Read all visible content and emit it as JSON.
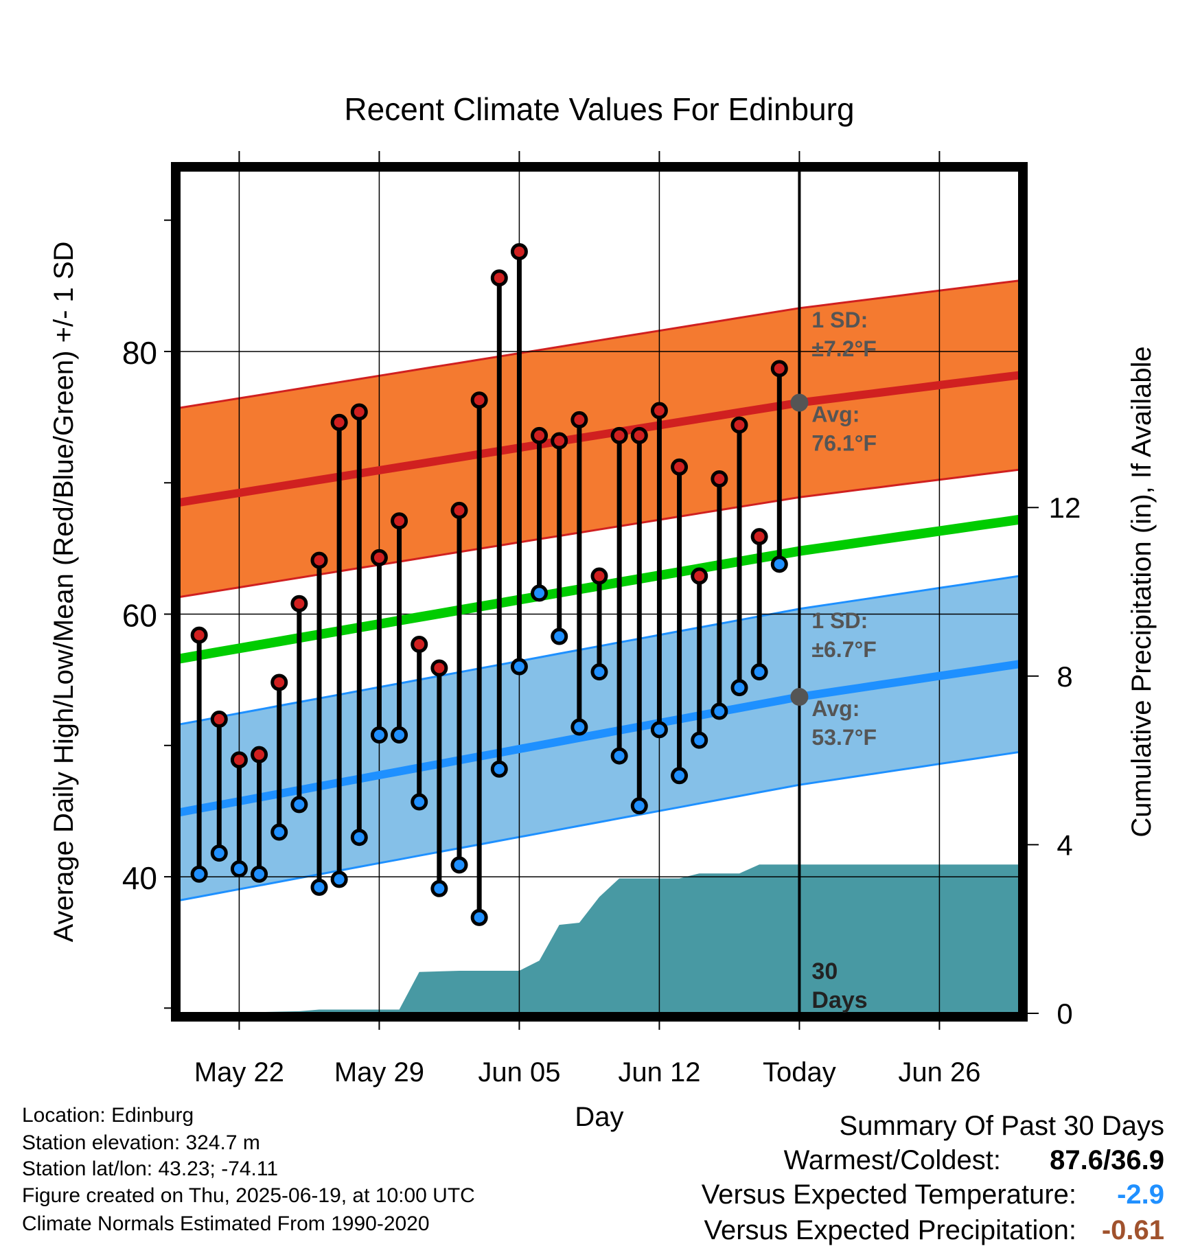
{
  "chart_data": {
    "type": "line",
    "title": "Recent Climate Values For Edinburg",
    "xlabel": "Day",
    "ylabel": "Average Daily High/Low/Mean (Red/Blue/Green) +/- 1 SD",
    "y2label": "Cumulative Precipitation (in), If Available",
    "ylim": [
      29.6,
      93.8
    ],
    "y2lim": [
      0,
      20
    ],
    "y_ticks": [
      40,
      60,
      80
    ],
    "y2_ticks": [
      0,
      4,
      8,
      12
    ],
    "x_range": [
      "2025-05-19",
      "2025-06-30"
    ],
    "x_ticks": [
      {
        "date": "2025-05-22",
        "label": "May 22"
      },
      {
        "date": "2025-05-29",
        "label": "May 29"
      },
      {
        "date": "2025-06-05",
        "label": "Jun 05"
      },
      {
        "date": "2025-06-12",
        "label": "Jun 12"
      },
      {
        "date": "2025-06-19",
        "label": "Today"
      },
      {
        "date": "2025-06-26",
        "label": "Jun 26"
      }
    ],
    "grid": true,
    "today": "2025-06-19",
    "days": [
      "2025-05-20",
      "2025-05-21",
      "2025-05-22",
      "2025-05-23",
      "2025-05-24",
      "2025-05-25",
      "2025-05-26",
      "2025-05-27",
      "2025-05-28",
      "2025-05-29",
      "2025-05-30",
      "2025-05-31",
      "2025-06-01",
      "2025-06-02",
      "2025-06-03",
      "2025-06-04",
      "2025-06-05",
      "2025-06-06",
      "2025-06-07",
      "2025-06-08",
      "2025-06-09",
      "2025-06-10",
      "2025-06-11",
      "2025-06-12",
      "2025-06-13",
      "2025-06-14",
      "2025-06-15",
      "2025-06-16",
      "2025-06-17",
      "2025-06-18"
    ],
    "highs": [
      58.4,
      52.0,
      48.9,
      49.3,
      54.8,
      60.8,
      64.1,
      74.6,
      75.4,
      64.3,
      67.1,
      57.7,
      55.9,
      67.9,
      76.3,
      85.6,
      87.6,
      73.6,
      73.2,
      74.8,
      62.9,
      73.6,
      73.6,
      75.5,
      71.2,
      62.9,
      70.3,
      74.4,
      65.9,
      78.7
    ],
    "lows": [
      40.2,
      41.8,
      40.6,
      40.2,
      43.4,
      45.5,
      39.2,
      39.8,
      43.0,
      50.8,
      50.8,
      45.7,
      39.1,
      40.9,
      36.9,
      48.2,
      56.0,
      61.6,
      58.3,
      51.4,
      55.6,
      49.2,
      45.4,
      51.2,
      47.7,
      50.4,
      52.6,
      54.4,
      55.6,
      63.8
    ],
    "normal_high": {
      "x": [
        "2025-05-19",
        "2025-06-19",
        "2025-06-30"
      ],
      "values": [
        68.5,
        76.1,
        78.2
      ],
      "sd": 7.2,
      "sd_label": "1 SD:",
      "sd_value": "±7.2°F",
      "avg_label": "Avg:",
      "avg_value": "76.1°F"
    },
    "normal_low": {
      "x": [
        "2025-05-19",
        "2025-06-19",
        "2025-06-30"
      ],
      "values": [
        44.9,
        53.7,
        56.2
      ],
      "sd": 6.7,
      "sd_label": "1 SD:",
      "sd_value": "±6.7°F",
      "avg_label": "Avg:",
      "avg_value": "53.7°F"
    },
    "normal_mean": {
      "x": [
        "2025-05-19",
        "2025-06-19",
        "2025-06-30"
      ],
      "values": [
        56.6,
        64.8,
        67.2
      ]
    },
    "cumulative_precipitation": {
      "x": [
        "2025-05-19",
        "2025-05-21",
        "2025-05-22",
        "2025-05-25",
        "2025-05-26",
        "2025-05-30",
        "2025-05-31",
        "2025-06-02",
        "2025-06-05",
        "2025-06-06",
        "2025-06-07",
        "2025-06-08",
        "2025-06-09",
        "2025-06-10",
        "2025-06-13",
        "2025-06-14",
        "2025-06-16",
        "2025-06-17",
        "2025-06-30"
      ],
      "values": [
        0,
        0,
        0.02,
        0.05,
        0.09,
        0.09,
        0.98,
        1.01,
        1.01,
        1.25,
        2.1,
        2.15,
        2.76,
        3.2,
        3.2,
        3.32,
        3.32,
        3.53,
        3.53
      ],
      "label": "30",
      "label2": "Days"
    },
    "colors": {
      "high_marker": "#d02020",
      "low_marker": "#2090ff",
      "high_band": "#f47a30",
      "high_avg": "#d02020",
      "low_band": "#85c0e8",
      "low_avg": "#1e90ff",
      "mean": "#00cc00",
      "precip": "#4899a3",
      "avg_dot": "#555555",
      "annot_text": "#555555"
    }
  },
  "info": {
    "location": "Location: Edinburg",
    "elevation": "Station elevation: 324.7 m",
    "latlon": "Station lat/lon: 43.23; -74.11",
    "created": "Figure created on Thu, 2025-06-19, at 10:00 UTC",
    "normals": "Climate Normals Estimated From 1990-2020"
  },
  "summary": {
    "heading": "Summary Of Past 30 Days",
    "warm_cold_label": "Warmest/Coldest:",
    "warm_cold_value": "87.6/36.9",
    "temp_label": "Versus Expected Temperature:",
    "temp_value": "-2.9",
    "temp_color": "#2090ff",
    "precip_label": "Versus Expected Precipitation:",
    "precip_value": "-0.61",
    "precip_color": "#a0522d"
  }
}
